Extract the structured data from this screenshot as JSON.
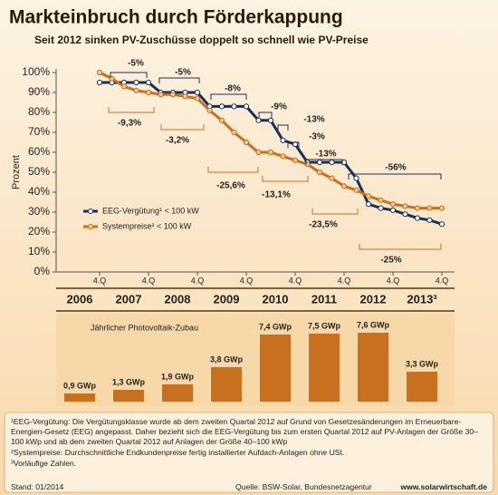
{
  "header": {
    "title": "Markteinbruch durch Förderkappung",
    "subtitle": "Seit 2012 sinken PV-Zuschüsse doppelt so schnell wie PV-Preise"
  },
  "chart_data": [
    {
      "type": "line",
      "ylabel": "Prozent",
      "categories": [
        "4.Q",
        null,
        null,
        null,
        "4.Q",
        null,
        null,
        null,
        "4.Q",
        null,
        null,
        null,
        "4.Q",
        null,
        null,
        null,
        "4.Q",
        null,
        null,
        null,
        "4.Q",
        null,
        null,
        null,
        "4.Q",
        null,
        null,
        null,
        "4.Q"
      ],
      "series": [
        {
          "name": "EEG-Vergütung¹ < 100 kW",
          "color": "#1c2e5a",
          "values": [
            95,
            95,
            95,
            95,
            95,
            90,
            90,
            90,
            90,
            83,
            83,
            83,
            83,
            76,
            76,
            66,
            64,
            55,
            55,
            55,
            55,
            47,
            34,
            32,
            31,
            29,
            27,
            26,
            24
          ]
        },
        {
          "name": "Systempreise² < 100 kW",
          "color": "#c8701e",
          "values": [
            100,
            97,
            93,
            91,
            90,
            89,
            89,
            88,
            87,
            81,
            76,
            70,
            65,
            60,
            60,
            58,
            56,
            54,
            50,
            47,
            43,
            41,
            38,
            36,
            34,
            33,
            32,
            32,
            32
          ]
        }
      ],
      "ylim": [
        0,
        100
      ],
      "yticks": [
        {
          "value": 0,
          "label": "0%"
        },
        {
          "value": 10,
          "label": "10%"
        },
        {
          "value": 20,
          "label": "20%"
        },
        {
          "value": 30,
          "label": "30%"
        },
        {
          "value": 40,
          "label": "40%"
        },
        {
          "value": 50,
          "label": "50%"
        },
        {
          "value": 60,
          "label": "60%"
        },
        {
          "value": 70,
          "label": "70%"
        },
        {
          "value": 80,
          "label": "80%"
        },
        {
          "value": 90,
          "label": "90%"
        },
        {
          "value": 100,
          "label": "100%"
        }
      ],
      "annotations": [
        "-5%",
        "-5%",
        "-8%",
        "-9%",
        "-13%",
        "-3%",
        "-13%",
        "-56%",
        "-9,3%",
        "-3,2%",
        "-25,6%",
        "-13,1%",
        "-23,5%",
        "-25%"
      ]
    },
    {
      "type": "bar",
      "title": "Jährlicher Photovoltaik-Zubau",
      "color": "#c8701e",
      "categories": [
        "2006",
        "2007",
        "2008",
        "2009",
        "2010",
        "2011",
        "2012",
        "2013³"
      ],
      "values": [
        0.9,
        1.3,
        1.9,
        3.8,
        7.4,
        7.5,
        7.6,
        3.3
      ],
      "value_labels": [
        "0,9 GWp",
        "1,3 GWp",
        "1,9 GWp",
        "3,8 GWp",
        "7,4 GWp",
        "7,5 GWp",
        "7,6 GWp",
        "3,3 GWp"
      ]
    }
  ],
  "footnotes": [
    "¹EEG-Vergütung: Die Vergütungsklasse wurde ab dem zweiten Quartal 2012 auf Grund von Gesetzesänderungen im Erneuerbare-Energien-Gesetz (EEG) angepasst. Daher bezieht sich die EEG-Vergütung bis zum ersten Quartal 2012 auf PV-Anlagen der Größe 30–100 kWp und ab dem zweiten Quartal 2012 auf Anlagen der Größe 40–100 kWp",
    "²Systempreise: Durchschnittliche Endkundenpreise fertig installierter Aufdach-Anlagen ohne USt.",
    "³Vorläufige Zahlen."
  ],
  "footer": {
    "date": "Stand: 01/2014",
    "source": "Quelle: BSW-Solar, Bundesnetzagentur",
    "website": "www.solarwirtschaft.de"
  }
}
